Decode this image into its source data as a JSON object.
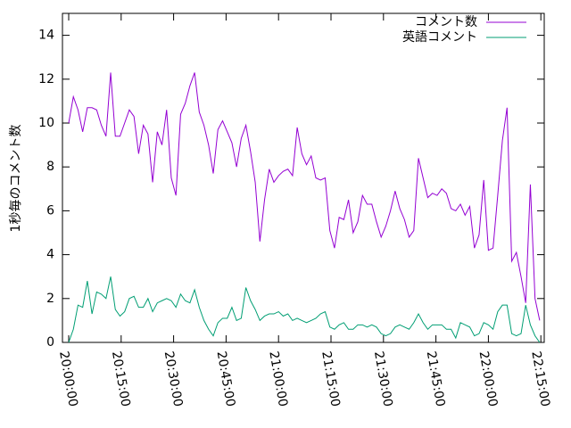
{
  "chart_data": {
    "type": "line",
    "ylabel": "1秒毎のコメント数",
    "x": [
      "20:00:00",
      "20:01:20",
      "20:02:40",
      "20:04:00",
      "20:05:20",
      "20:06:40",
      "20:08:00",
      "20:09:20",
      "20:10:40",
      "20:12:00",
      "20:13:20",
      "20:14:40",
      "20:16:00",
      "20:17:20",
      "20:18:40",
      "20:20:00",
      "20:21:20",
      "20:22:40",
      "20:24:00",
      "20:25:20",
      "20:26:40",
      "20:28:00",
      "20:29:20",
      "20:30:40",
      "20:32:00",
      "20:33:20",
      "20:34:40",
      "20:36:00",
      "20:37:20",
      "20:38:40",
      "20:40:00",
      "20:41:20",
      "20:42:40",
      "20:44:00",
      "20:45:20",
      "20:46:40",
      "20:48:00",
      "20:49:20",
      "20:50:40",
      "20:52:00",
      "20:53:20",
      "20:54:40",
      "20:56:00",
      "20:57:20",
      "20:58:40",
      "21:00:00",
      "21:01:20",
      "21:02:40",
      "21:04:00",
      "21:05:20",
      "21:06:40",
      "21:08:00",
      "21:09:20",
      "21:10:40",
      "21:12:00",
      "21:13:20",
      "21:14:40",
      "21:16:00",
      "21:17:20",
      "21:18:40",
      "21:20:00",
      "21:21:20",
      "21:22:40",
      "21:24:00",
      "21:25:20",
      "21:26:40",
      "21:28:00",
      "21:29:20",
      "21:30:40",
      "21:32:00",
      "21:33:20",
      "21:34:40",
      "21:36:00",
      "21:37:20",
      "21:38:40",
      "21:40:00",
      "21:41:20",
      "21:42:40",
      "21:44:00",
      "21:45:20",
      "21:46:40",
      "21:48:00",
      "21:49:20",
      "21:50:40",
      "21:52:00",
      "21:53:20",
      "21:54:40",
      "21:56:00",
      "21:57:20",
      "21:58:40",
      "22:00:00",
      "22:01:20",
      "22:02:40",
      "22:04:00",
      "22:05:20",
      "22:06:40",
      "22:08:00",
      "22:09:20",
      "22:10:40",
      "22:12:00",
      "22:13:20",
      "22:14:40"
    ],
    "series": [
      {
        "name": "コメント数",
        "color": "#9400d3",
        "values": [
          10.0,
          11.2,
          10.6,
          9.6,
          10.7,
          10.7,
          10.6,
          9.9,
          9.4,
          12.3,
          9.4,
          9.4,
          10.0,
          10.6,
          10.3,
          8.6,
          9.9,
          9.5,
          7.3,
          9.6,
          9.0,
          10.6,
          7.5,
          6.7,
          10.4,
          10.9,
          11.7,
          12.3,
          10.5,
          9.9,
          9.0,
          7.7,
          9.7,
          10.1,
          9.6,
          9.1,
          8.0,
          9.3,
          9.9,
          8.7,
          7.3,
          4.6,
          6.5,
          7.9,
          7.3,
          7.6,
          7.8,
          7.9,
          7.6,
          9.8,
          8.6,
          8.1,
          8.5,
          7.5,
          7.4,
          7.5,
          5.1,
          4.3,
          5.7,
          5.6,
          6.5,
          5.0,
          5.5,
          6.7,
          6.3,
          6.3,
          5.5,
          4.8,
          5.3,
          6.0,
          6.9,
          6.1,
          5.6,
          4.8,
          5.1,
          8.4,
          7.5,
          6.6,
          6.8,
          6.7,
          7.0,
          6.8,
          6.1,
          6.0,
          6.3,
          5.8,
          6.2,
          4.3,
          4.9,
          7.4,
          4.2,
          4.3,
          6.7,
          9.2,
          10.7,
          3.7,
          4.1,
          3.0,
          1.8,
          7.2,
          2.0,
          1.0
        ]
      },
      {
        "name": "英語コメント",
        "color": "#009e73",
        "values": [
          0.0,
          0.6,
          1.7,
          1.6,
          2.8,
          1.3,
          2.3,
          2.2,
          2.0,
          3.0,
          1.5,
          1.2,
          1.4,
          2.0,
          2.1,
          1.6,
          1.6,
          2.0,
          1.4,
          1.8,
          1.9,
          2.0,
          1.9,
          1.6,
          2.2,
          1.9,
          1.8,
          2.4,
          1.6,
          1.0,
          0.6,
          0.3,
          0.9,
          1.1,
          1.1,
          1.6,
          1.0,
          1.1,
          2.5,
          1.9,
          1.5,
          1.0,
          1.2,
          1.3,
          1.3,
          1.4,
          1.2,
          1.3,
          1.0,
          1.1,
          1.0,
          0.9,
          1.0,
          1.1,
          1.3,
          1.4,
          0.7,
          0.6,
          0.8,
          0.9,
          0.6,
          0.6,
          0.8,
          0.8,
          0.7,
          0.8,
          0.7,
          0.4,
          0.3,
          0.4,
          0.7,
          0.8,
          0.7,
          0.6,
          0.9,
          1.3,
          0.9,
          0.6,
          0.8,
          0.8,
          0.8,
          0.6,
          0.6,
          0.2,
          0.9,
          0.8,
          0.7,
          0.3,
          0.4,
          0.9,
          0.8,
          0.6,
          1.4,
          1.7,
          1.7,
          0.4,
          0.3,
          0.4,
          1.7,
          0.8,
          0.3,
          0.0
        ]
      }
    ],
    "xlim": [
      "19:58:13",
      "22:15:58"
    ],
    "xticks": [
      "20:00:00",
      "20:15:00",
      "20:30:00",
      "20:45:00",
      "21:00:00",
      "21:15:00",
      "21:30:00",
      "21:45:00",
      "22:00:00",
      "22:15:00"
    ],
    "ylim": [
      0,
      15
    ],
    "yticks": [
      0,
      2,
      4,
      6,
      8,
      10,
      12,
      14
    ],
    "legend": "top-right"
  }
}
